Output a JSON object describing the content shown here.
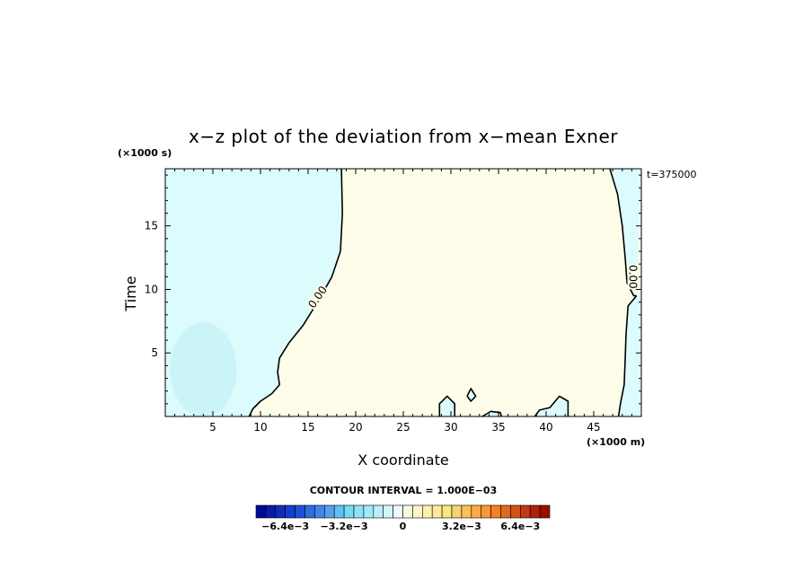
{
  "chart_data": {
    "type": "contour",
    "title": "x−z plot of the deviation from x−mean Exner",
    "xlabel": "X coordinate",
    "ylabel": "Time",
    "x_unit": "(×1000 m)",
    "y_unit": "(×1000 s)",
    "time_label": "t=375000",
    "xlim": [
      0,
      50
    ],
    "ylim": [
      0,
      19.5
    ],
    "x_ticks": [
      5,
      10,
      15,
      20,
      25,
      30,
      35,
      40,
      45
    ],
    "y_ticks": [
      5,
      10,
      15
    ],
    "contour_interval_text": "CONTOUR INTERVAL = 1.000E−03",
    "contour_labels": [
      {
        "text": "0.00",
        "x": 16,
        "y": 9.4,
        "angle": -55
      },
      {
        "text": "0.00",
        "x": 49.1,
        "y": 11,
        "angle": 90
      }
    ],
    "zero_contour_left": [
      [
        18.5,
        19.5
      ],
      [
        18.6,
        16
      ],
      [
        18.4,
        13
      ],
      [
        17.5,
        11
      ],
      [
        16,
        9
      ],
      [
        14.5,
        7.2
      ],
      [
        13,
        5.8
      ],
      [
        12,
        4.6
      ],
      [
        11.8,
        3.5
      ],
      [
        12,
        2.5
      ],
      [
        11.2,
        1.8
      ],
      [
        10,
        1.2
      ],
      [
        9.2,
        0.6
      ],
      [
        8.8,
        0
      ]
    ],
    "zero_contour_right": [
      [
        46.7,
        19.5
      ],
      [
        47.5,
        17.5
      ],
      [
        48,
        15
      ],
      [
        48.3,
        12.5
      ],
      [
        48.5,
        10.5
      ],
      [
        49.2,
        9.5
      ],
      [
        49.5,
        9.5
      ]
    ],
    "zero_contour_right2": [
      [
        49.5,
        9.5
      ],
      [
        48.6,
        8.7
      ],
      [
        48.4,
        6.5
      ],
      [
        48.3,
        4.5
      ],
      [
        48.2,
        2.5
      ],
      [
        47.8,
        1
      ],
      [
        47.6,
        0
      ]
    ],
    "closed_contours": [
      [
        [
          28.8,
          0
        ],
        [
          28.8,
          1.0
        ],
        [
          29.6,
          1.6
        ],
        [
          30.4,
          1.0
        ],
        [
          30.4,
          0
        ]
      ],
      [
        [
          31.7,
          1.6
        ],
        [
          32.1,
          2.2
        ],
        [
          32.6,
          1.6
        ],
        [
          32.1,
          1.2
        ],
        [
          31.7,
          1.6
        ]
      ],
      [
        [
          33.3,
          0
        ],
        [
          34.2,
          0.4
        ],
        [
          35.2,
          0.3
        ],
        [
          35.3,
          0
        ]
      ],
      [
        [
          38.8,
          0
        ],
        [
          39.3,
          0.5
        ],
        [
          40.4,
          0.7
        ],
        [
          41.4,
          1.6
        ],
        [
          42.3,
          1.2
        ],
        [
          42.3,
          0
        ]
      ]
    ],
    "colorbar": {
      "min": -0.008,
      "max": 0.008,
      "levels": 30,
      "tick_labels": [
        "−6.4e−3",
        "−3.2e−3",
        "0",
        "3.2e−3",
        "6.4e−3"
      ],
      "tick_values": [
        -0.0064,
        -0.0032,
        0,
        0.0032,
        0.0064
      ]
    },
    "colors": {
      "negative_region": "#dcfbfd",
      "negative_blob": "#caf4f8",
      "positive_region": "#fdfdea",
      "contour": "#000000"
    }
  }
}
